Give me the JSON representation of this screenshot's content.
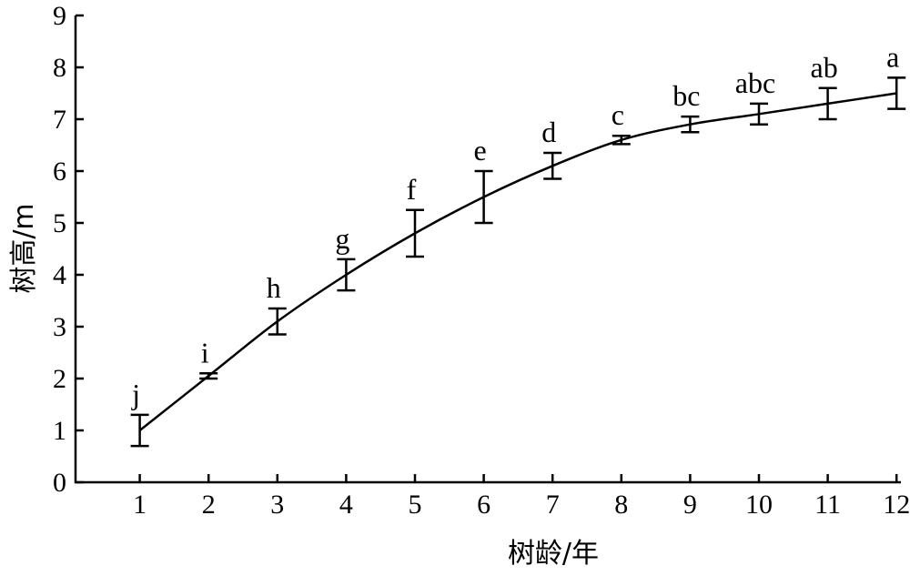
{
  "chart_data": {
    "type": "line",
    "title": "",
    "xlabel": "树龄/年",
    "ylabel": "树高/m",
    "xlim": [
      0,
      12.3
    ],
    "ylim": [
      0,
      9
    ],
    "x_ticks": [
      1,
      2,
      3,
      4,
      5,
      6,
      7,
      8,
      9,
      10,
      11,
      12
    ],
    "y_ticks": [
      0,
      1,
      2,
      3,
      4,
      5,
      6,
      7,
      8,
      9
    ],
    "grid": false,
    "legend": "none",
    "series": [
      {
        "x": [
          1,
          2,
          3,
          4,
          5,
          6,
          7,
          8,
          9,
          10,
          11,
          12
        ],
        "values": [
          1.0,
          2.05,
          3.1,
          4.0,
          4.8,
          5.5,
          6.1,
          6.6,
          6.9,
          7.1,
          7.3,
          7.5
        ],
        "error": [
          0.3,
          0.05,
          0.25,
          0.3,
          0.45,
          0.5,
          0.25,
          0.08,
          0.15,
          0.2,
          0.3,
          0.3
        ],
        "significance": [
          "j",
          "i",
          "h",
          "g",
          "f",
          "e",
          "d",
          "c",
          "bc",
          "abc",
          "ab",
          "a"
        ]
      }
    ]
  }
}
